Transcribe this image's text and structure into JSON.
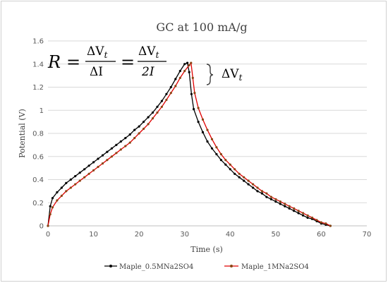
{
  "chart_data": {
    "type": "line",
    "title": "GC at 100 mA/g",
    "xlabel": "Time (s)",
    "ylabel": "Potential (V)",
    "xlim": [
      0,
      70
    ],
    "ylim": [
      0,
      1.6
    ],
    "xticks": [
      0,
      10,
      20,
      30,
      40,
      50,
      60,
      70
    ],
    "yticks": [
      0,
      0.2,
      0.4,
      0.6,
      0.8,
      1,
      1.2,
      1.4,
      1.6
    ],
    "grid": "horizontal",
    "legend_position": "bottom",
    "series": [
      {
        "name": "Maple_0.5MNa2SO4",
        "color": "#000000",
        "x": [
          0,
          0.5,
          1,
          2,
          3,
          4,
          5,
          6,
          7,
          8,
          9,
          10,
          11,
          12,
          13,
          14,
          15,
          16,
          17,
          18,
          19,
          20,
          21,
          22,
          23,
          24,
          25,
          26,
          27,
          28,
          29,
          30,
          30.6,
          31,
          31.5,
          32,
          33,
          34,
          35,
          36,
          37,
          38,
          39,
          40,
          41,
          42,
          43,
          44,
          45,
          46,
          47,
          48,
          49,
          50,
          51,
          52,
          53,
          54,
          55,
          56,
          57,
          58,
          59,
          60,
          61,
          62
        ],
        "y": [
          0,
          0.17,
          0.24,
          0.29,
          0.33,
          0.37,
          0.4,
          0.43,
          0.46,
          0.49,
          0.52,
          0.55,
          0.58,
          0.61,
          0.64,
          0.67,
          0.7,
          0.73,
          0.76,
          0.79,
          0.83,
          0.86,
          0.9,
          0.94,
          0.98,
          1.03,
          1.08,
          1.14,
          1.2,
          1.27,
          1.34,
          1.4,
          1.41,
          1.33,
          1.14,
          1.01,
          0.9,
          0.81,
          0.73,
          0.67,
          0.62,
          0.57,
          0.53,
          0.49,
          0.45,
          0.42,
          0.39,
          0.36,
          0.33,
          0.3,
          0.28,
          0.25,
          0.23,
          0.21,
          0.19,
          0.17,
          0.15,
          0.13,
          0.11,
          0.09,
          0.07,
          0.06,
          0.04,
          0.02,
          0.01,
          0.0
        ]
      },
      {
        "name": "Maple_1MNa2SO4",
        "color": "#8B4513",
        "line_color": "#e00000",
        "x": [
          0,
          0.5,
          1,
          2,
          3,
          4,
          5,
          6,
          7,
          8,
          9,
          10,
          11,
          12,
          13,
          14,
          15,
          16,
          17,
          18,
          19,
          20,
          21,
          22,
          23,
          24,
          25,
          26,
          27,
          28,
          29,
          30,
          31,
          31.4,
          31.8,
          32.2,
          33,
          34,
          35,
          36,
          37,
          38,
          39,
          40,
          41,
          42,
          43,
          44,
          45,
          46,
          47,
          48,
          49,
          50,
          51,
          52,
          53,
          54,
          55,
          56,
          57,
          58,
          59,
          60,
          61,
          62
        ],
        "y": [
          0,
          0.1,
          0.16,
          0.22,
          0.26,
          0.3,
          0.33,
          0.36,
          0.39,
          0.42,
          0.45,
          0.48,
          0.51,
          0.54,
          0.57,
          0.6,
          0.63,
          0.66,
          0.69,
          0.72,
          0.76,
          0.8,
          0.84,
          0.88,
          0.93,
          0.98,
          1.03,
          1.09,
          1.15,
          1.21,
          1.28,
          1.34,
          1.39,
          1.41,
          1.28,
          1.15,
          1.02,
          0.92,
          0.83,
          0.75,
          0.68,
          0.62,
          0.57,
          0.53,
          0.49,
          0.45,
          0.42,
          0.39,
          0.36,
          0.33,
          0.3,
          0.28,
          0.25,
          0.23,
          0.21,
          0.19,
          0.17,
          0.15,
          0.13,
          0.11,
          0.09,
          0.07,
          0.05,
          0.03,
          0.02,
          0.0
        ]
      }
    ],
    "annotations": {
      "equation": {
        "lhs": "R",
        "eq1": "=",
        "f1_num": "ΔV",
        "f1_num_sub": "t",
        "f1_den": "ΔI",
        "eq2": "=",
        "f2_num": "ΔV",
        "f2_num_sub": "t",
        "f2_den": "2I"
      },
      "bracket_label": "ΔV",
      "bracket_label_sub": "t"
    }
  }
}
